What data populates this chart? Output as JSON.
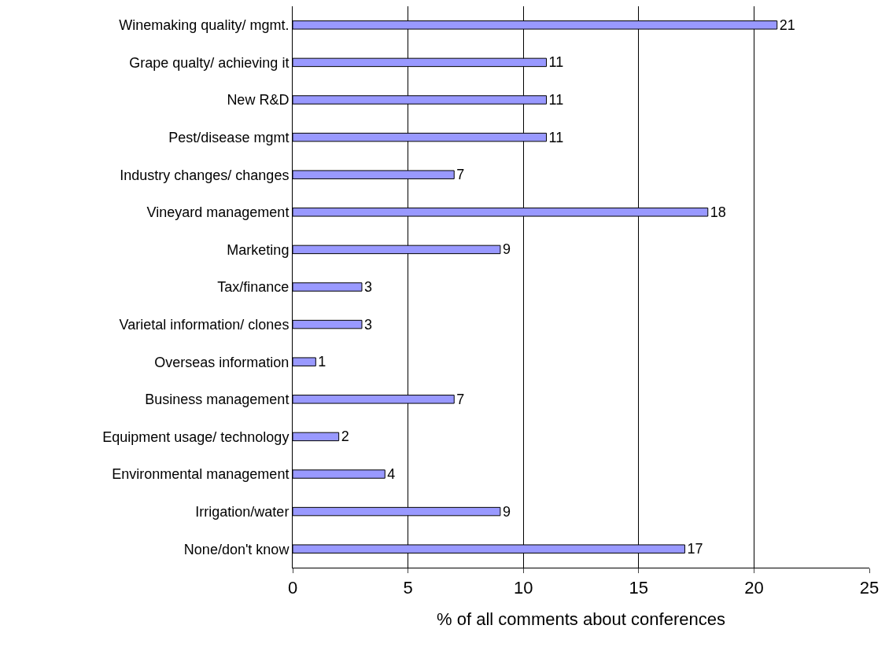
{
  "chart_data": {
    "type": "bar",
    "orientation": "horizontal",
    "xlabel": "% of all comments about conferences",
    "categories": [
      "Winemaking quality/ mgmt.",
      "Grape qualty/ achieving it",
      "New R&D",
      "Pest/disease mgmt",
      "Industry changes/ changes",
      "Vineyard management",
      "Marketing",
      "Tax/finance",
      "Varietal information/ clones",
      "Overseas information",
      "Business management",
      "Equipment usage/ technology",
      "Environmental management",
      "Irrigation/water",
      "None/don't know"
    ],
    "values": [
      21,
      11,
      11,
      11,
      7,
      18,
      9,
      3,
      3,
      1,
      7,
      2,
      4,
      9,
      17
    ],
    "color": "#9999ff",
    "xlim": [
      0,
      25
    ],
    "xticks": [
      0,
      5,
      10,
      15,
      20,
      25
    ],
    "grid": "x",
    "data_labels": true
  }
}
